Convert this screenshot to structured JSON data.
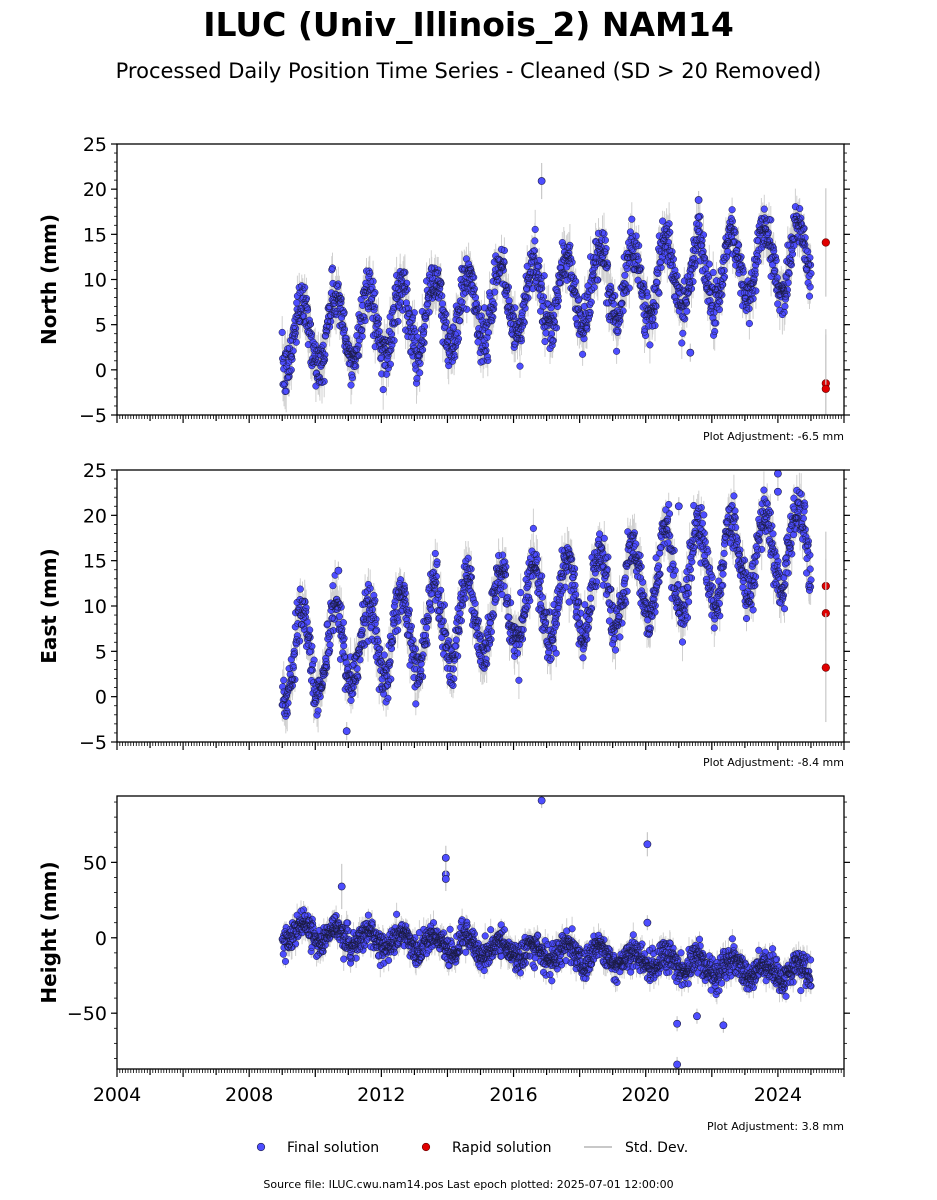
{
  "title": "ILUC (Univ_Illinois_2) NAM14",
  "subtitle": "Processed Daily Position Time Series - Cleaned (SD > 20 Removed)",
  "footer": "Source file: ILUC.cwu.nam14.pos  Last epoch plotted: 2025-07-01 12:00:00",
  "legend": {
    "final_label": "Final solution",
    "rapid_label": "Rapid solution",
    "sd_label": "Std. Dev."
  },
  "colors": {
    "final": "#4d4dff",
    "rapid": "#e00000",
    "sd": "#c8c8c8",
    "edge": "#1a1a40"
  },
  "chart_data": [
    {
      "type": "scatter",
      "ylabel": "North (mm)",
      "note": "Plot Adjustment: -6.5 mm",
      "ylim": [
        -5,
        25
      ],
      "yticks": [
        -5,
        0,
        5,
        10,
        15,
        20,
        25
      ],
      "xlim": [
        2004,
        2026
      ],
      "data_span": [
        2009.0,
        2025.0
      ],
      "trend_start": 3.5,
      "trend_end": 12.8,
      "seasonal_amplitude": 4.0,
      "noise": 1.4,
      "outliers": [
        {
          "x": 2016.85,
          "y": 20.9,
          "sd": 2.0
        },
        {
          "x": 2021.6,
          "y": 18.8,
          "sd": 1.0
        },
        {
          "x": 2021.35,
          "y": 1.9,
          "sd": 1.0
        }
      ],
      "rapid": [
        {
          "x": 2025.45,
          "y": 14.1,
          "sd": 6.0
        },
        {
          "x": 2025.45,
          "y": -1.5,
          "sd": 6.0
        },
        {
          "x": 2025.45,
          "y": -2.1,
          "sd": 6.0
        }
      ]
    },
    {
      "type": "scatter",
      "ylabel": "East (mm)",
      "note": "Plot Adjustment: -8.4 mm",
      "ylim": [
        -5,
        25
      ],
      "yticks": [
        -5,
        0,
        5,
        10,
        15,
        20,
        25
      ],
      "xlim": [
        2004,
        2026
      ],
      "data_span": [
        2009.0,
        2025.0
      ],
      "trend_start": 4.0,
      "trend_end": 17.0,
      "seasonal_amplitude": 4.5,
      "noise": 1.4,
      "outliers": [
        {
          "x": 2024.0,
          "y": 24.6,
          "sd": 1.0
        },
        {
          "x": 2024.0,
          "y": 22.6,
          "sd": 1.0
        },
        {
          "x": 2021.0,
          "y": 21.0,
          "sd": 1.0
        },
        {
          "x": 2010.7,
          "y": 13.9,
          "sd": 1.0
        },
        {
          "x": 2010.95,
          "y": -3.8,
          "sd": 1.0
        }
      ],
      "rapid": [
        {
          "x": 2025.45,
          "y": 12.2,
          "sd": 6.0
        },
        {
          "x": 2025.45,
          "y": 9.2,
          "sd": 6.0
        },
        {
          "x": 2025.45,
          "y": 3.2,
          "sd": 6.0
        }
      ]
    },
    {
      "type": "scatter",
      "ylabel": "Height (mm)",
      "note": "Plot Adjustment: 3.8 mm",
      "ylim": [
        -87,
        94
      ],
      "yticks": [
        -50,
        0,
        50
      ],
      "xlim": [
        2004,
        2026
      ],
      "xticks": [
        2004,
        2008,
        2012,
        2016,
        2020,
        2024
      ],
      "data_span": [
        2009.0,
        2025.0
      ],
      "trend_start": 4.0,
      "trend_end": -24.0,
      "seasonal_amplitude": 6.0,
      "noise": 5.0,
      "outliers": [
        {
          "x": 2016.85,
          "y": 91.0,
          "sd": 5.0
        },
        {
          "x": 2020.05,
          "y": 62.0,
          "sd": 8.0
        },
        {
          "x": 2013.95,
          "y": 53.0,
          "sd": 8.0
        },
        {
          "x": 2013.95,
          "y": 42.0,
          "sd": 8.0
        },
        {
          "x": 2013.95,
          "y": 39.0,
          "sd": 8.0
        },
        {
          "x": 2010.8,
          "y": 34.0,
          "sd": 15.0
        },
        {
          "x": 2020.05,
          "y": 10.0,
          "sd": 5.0
        },
        {
          "x": 2020.95,
          "y": -57.0,
          "sd": 5.0
        },
        {
          "x": 2022.35,
          "y": -58.0,
          "sd": 5.0
        },
        {
          "x": 2021.55,
          "y": -52.0,
          "sd": 5.0
        },
        {
          "x": 2020.95,
          "y": -84.0,
          "sd": 5.0
        }
      ],
      "rapid": []
    }
  ]
}
